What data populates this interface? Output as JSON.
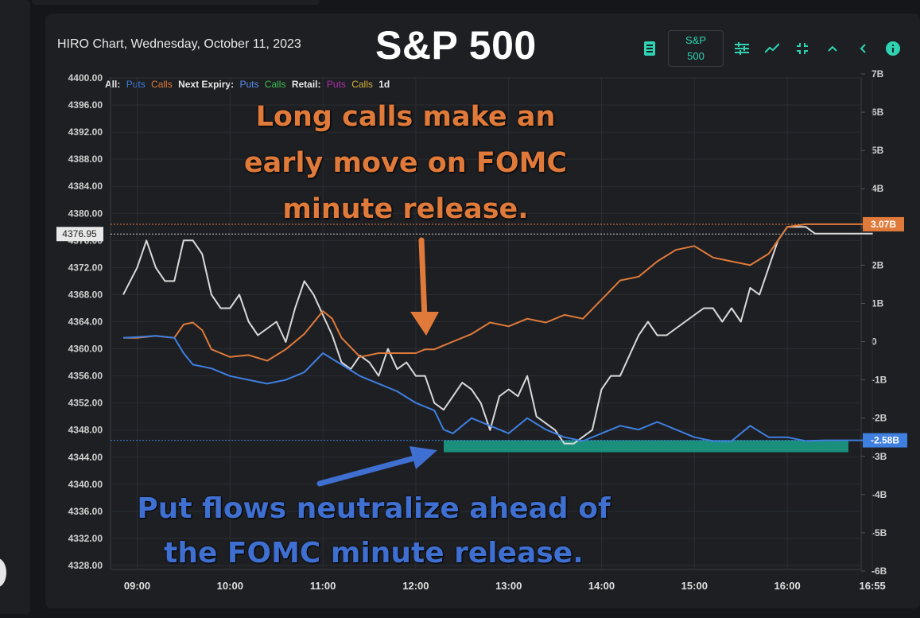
{
  "header": {
    "subtitle": "HIRO Chart, Wednesday, October 11, 2023",
    "title": "S&P 500"
  },
  "toolbar": {
    "symbol_line1": "S&P",
    "symbol_line2": "500",
    "icons": [
      "notes-icon",
      "sliders-icon",
      "trend-line-icon",
      "collapse-icon",
      "chevron-up-icon",
      "chevron-left-icon",
      "info-icon"
    ]
  },
  "legend": {
    "all": "All:",
    "all_puts": "Puts",
    "all_calls": "Calls",
    "next_expiry": "Next Expiry:",
    "next_puts": "Puts",
    "next_calls": "Calls",
    "retail": "Retail:",
    "retail_puts": "Puts",
    "retail_calls": "Calls",
    "range": "1d"
  },
  "annotations": {
    "calls_note": "Long calls make an early move on FOMC minute release.",
    "puts_note": "Put flows neutralize ahead of the FOMC minute release."
  },
  "colors": {
    "price": "#d9d9d9",
    "calls": "#e07a3a",
    "puts": "#3f7fdf",
    "teal": "#1a8f7c",
    "background": "#1d1f23"
  },
  "chart_data": {
    "type": "line",
    "title": "S&P 500",
    "x_ticks": [
      "09:00",
      "10:00",
      "11:00",
      "12:00",
      "13:00",
      "14:00",
      "15:00",
      "16:00",
      "16:55"
    ],
    "y_left_ticks": [
      "4400.00",
      "4396.00",
      "4392.00",
      "4388.00",
      "4384.00",
      "4380.00",
      "4376.00",
      "4372.00",
      "4368.00",
      "4364.00",
      "4360.00",
      "4356.00",
      "4352.00",
      "4348.00",
      "4344.00",
      "4340.00",
      "4336.00",
      "4332.00",
      "4328.00"
    ],
    "y_left_range": [
      4328,
      4400
    ],
    "y_right_ticks": [
      "7B",
      "6B",
      "5B",
      "4B",
      "3B",
      "2B",
      "1B",
      "0",
      "-1B",
      "-2B",
      "-3B",
      "-4B",
      "-5B",
      "-6B"
    ],
    "y_right_range": [
      -6,
      7
    ],
    "price_label": "4376.95",
    "calls_label": "3.07B",
    "puts_label": "-2.58B",
    "series": [
      {
        "name": "Price",
        "axis": "left",
        "x": [
          8.85,
          9.0,
          9.1,
          9.2,
          9.3,
          9.4,
          9.5,
          9.6,
          9.7,
          9.8,
          9.9,
          10.0,
          10.1,
          10.2,
          10.3,
          10.4,
          10.5,
          10.6,
          10.7,
          10.8,
          10.9,
          11.0,
          11.1,
          11.2,
          11.3,
          11.4,
          11.5,
          11.6,
          11.7,
          11.8,
          11.9,
          12.0,
          12.1,
          12.2,
          12.3,
          12.4,
          12.5,
          12.6,
          12.7,
          12.8,
          12.9,
          13.0,
          13.1,
          13.2,
          13.3,
          13.4,
          13.5,
          13.6,
          13.7,
          13.8,
          13.9,
          14.0,
          14.1,
          14.2,
          14.3,
          14.4,
          14.5,
          14.6,
          14.7,
          14.8,
          14.9,
          15.0,
          15.1,
          15.2,
          15.3,
          15.4,
          15.5,
          15.6,
          15.7,
          15.8,
          15.9,
          16.0,
          16.1,
          16.2,
          16.3,
          16.4,
          16.5,
          16.6,
          16.7,
          16.8,
          16.92
        ],
        "values": [
          4368,
          4372,
          4376,
          4372,
          4370,
          4370,
          4376,
          4376,
          4374,
          4368,
          4366,
          4366,
          4368,
          4364,
          4362,
          4363,
          4364,
          4361,
          4366,
          4370,
          4368,
          4365,
          4362,
          4358,
          4357,
          4359,
          4358,
          4356,
          4360,
          4357,
          4358,
          4356,
          4356,
          4352,
          4351,
          4353,
          4355,
          4354,
          4352,
          4348,
          4353,
          4354,
          4353,
          4356,
          4350,
          4349,
          4348,
          4346,
          4346,
          4347,
          4348,
          4354,
          4356,
          4356,
          4359,
          4362,
          4364,
          4362,
          4362,
          4363,
          4364,
          4365,
          4366,
          4366,
          4364,
          4366,
          4364,
          4369,
          4368,
          4372,
          4376,
          4378,
          4378,
          4378,
          4377,
          4377,
          4377,
          4377,
          4377,
          4377,
          4377
        ]
      },
      {
        "name": "Calls",
        "axis": "right",
        "x": [
          8.85,
          9.0,
          9.2,
          9.4,
          9.5,
          9.6,
          9.7,
          9.8,
          9.9,
          10.0,
          10.2,
          10.4,
          10.6,
          10.8,
          11.0,
          11.1,
          11.2,
          11.4,
          11.6,
          11.8,
          12.0,
          12.1,
          12.2,
          12.3,
          12.4,
          12.6,
          12.8,
          13.0,
          13.2,
          13.4,
          13.6,
          13.8,
          14.0,
          14.2,
          14.4,
          14.6,
          14.8,
          15.0,
          15.2,
          15.4,
          15.6,
          15.8,
          16.0,
          16.2,
          16.4,
          16.6,
          16.8,
          16.92
        ],
        "values": [
          0.1,
          0.1,
          0.15,
          0.1,
          0.45,
          0.5,
          0.3,
          -0.2,
          -0.3,
          -0.4,
          -0.35,
          -0.5,
          -0.2,
          0.2,
          0.8,
          0.6,
          0.1,
          -0.4,
          -0.3,
          -0.3,
          -0.3,
          -0.2,
          -0.2,
          -0.1,
          0.0,
          0.2,
          0.5,
          0.4,
          0.6,
          0.5,
          0.7,
          0.6,
          1.1,
          1.6,
          1.7,
          2.1,
          2.4,
          2.5,
          2.2,
          2.1,
          2.0,
          2.3,
          3.0,
          3.07,
          3.07,
          3.07,
          3.07,
          3.07
        ]
      },
      {
        "name": "Puts",
        "axis": "right",
        "x": [
          8.85,
          9.0,
          9.2,
          9.4,
          9.5,
          9.6,
          9.8,
          10.0,
          10.2,
          10.4,
          10.6,
          10.8,
          11.0,
          11.2,
          11.4,
          11.6,
          11.8,
          12.0,
          12.2,
          12.3,
          12.4,
          12.6,
          12.8,
          13.0,
          13.2,
          13.4,
          13.6,
          13.8,
          14.0,
          14.2,
          14.4,
          14.6,
          14.8,
          15.0,
          15.2,
          15.4,
          15.6,
          15.8,
          16.0,
          16.2,
          16.4,
          16.6,
          16.8,
          16.92
        ],
        "values": [
          0.1,
          0.12,
          0.15,
          0.1,
          -0.3,
          -0.6,
          -0.7,
          -0.9,
          -1.0,
          -1.1,
          -1.0,
          -0.8,
          -0.3,
          -0.6,
          -0.9,
          -1.1,
          -1.3,
          -1.6,
          -1.8,
          -2.3,
          -2.4,
          -2.0,
          -2.2,
          -2.4,
          -2.0,
          -2.3,
          -2.5,
          -2.6,
          -2.4,
          -2.2,
          -2.3,
          -2.1,
          -2.3,
          -2.5,
          -2.6,
          -2.6,
          -2.2,
          -2.5,
          -2.5,
          -2.6,
          -2.58,
          -2.58,
          -2.58,
          -2.58
        ]
      }
    ]
  }
}
